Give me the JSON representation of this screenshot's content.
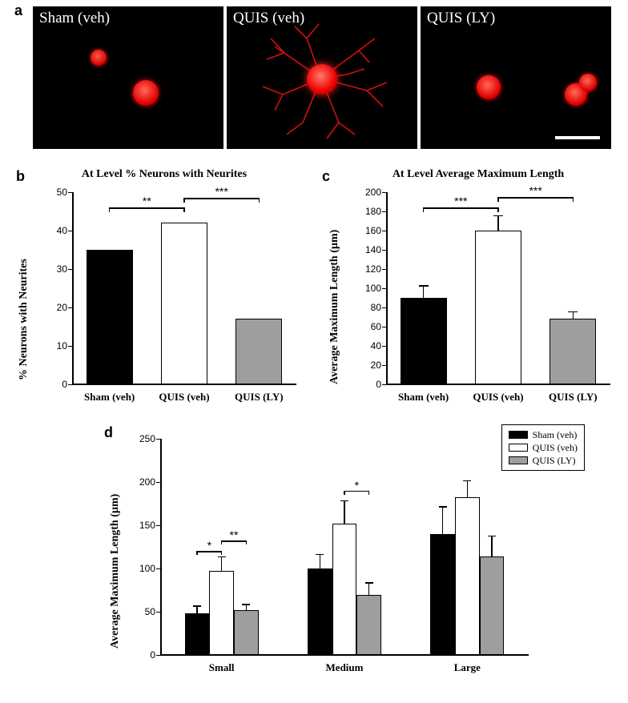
{
  "panel_labels": {
    "a": "a",
    "b": "b",
    "c": "c",
    "d": "d"
  },
  "panel_a": {
    "images": [
      {
        "caption": "Sham (veh)"
      },
      {
        "caption": "QUIS (veh)"
      },
      {
        "caption": "QUIS (LY)"
      }
    ],
    "background_color": "#000000",
    "cell_color": "#ff1a1a"
  },
  "chart_b": {
    "type": "bar",
    "title": "At Level % Neurons with Neurites",
    "ylabel": "% Neurons with Neurites",
    "ylim": [
      0,
      50
    ],
    "ytick_step": 10,
    "categories": [
      "Sham (veh)",
      "QUIS (veh)",
      "QUIS (LY)"
    ],
    "values": [
      35,
      42,
      17
    ],
    "errors": [
      0,
      0,
      0
    ],
    "bar_colors": [
      "#000000",
      "#ffffff",
      "#9e9e9e"
    ],
    "sig": [
      {
        "from": 0,
        "to": 1,
        "label": "**",
        "y": 46
      },
      {
        "from": 1,
        "to": 2,
        "label": "***",
        "y": 48.5
      }
    ],
    "title_fontsize": 14,
    "label_fontsize": 13
  },
  "chart_c": {
    "type": "bar",
    "title": "At Level Average Maximum Length",
    "ylabel": "Average Maximum Length (µm)",
    "ylim": [
      0,
      200
    ],
    "ytick_step": 20,
    "categories": [
      "Sham (veh)",
      "QUIS (veh)",
      "QUIS (LY)"
    ],
    "values": [
      90,
      160,
      68
    ],
    "errors": [
      13,
      16,
      8
    ],
    "bar_colors": [
      "#000000",
      "#ffffff",
      "#9e9e9e"
    ],
    "sig": [
      {
        "from": 0,
        "to": 1,
        "label": "***",
        "y": 184
      },
      {
        "from": 1,
        "to": 2,
        "label": "***",
        "y": 195
      }
    ]
  },
  "chart_d": {
    "type": "grouped-bar",
    "ylabel": "Average Maximum Length (µm)",
    "ylim": [
      0,
      250
    ],
    "ytick_step": 50,
    "groups": [
      "Small",
      "Medium",
      "Large"
    ],
    "series": [
      {
        "name": "Sham (veh)",
        "color": "#000000",
        "values": [
          48,
          100,
          140
        ],
        "errors": [
          9,
          17,
          32
        ]
      },
      {
        "name": "QUIS (veh)",
        "color": "#ffffff",
        "values": [
          97,
          152,
          182
        ],
        "errors": [
          17,
          27,
          20
        ]
      },
      {
        "name": "QUIS (LY)",
        "color": "#9e9e9e",
        "values": [
          52,
          69,
          114
        ],
        "errors": [
          7,
          15,
          24
        ]
      }
    ],
    "sig": [
      {
        "group": 0,
        "from": 0,
        "to": 1,
        "label": "*",
        "y": 120
      },
      {
        "group": 0,
        "from": 1,
        "to": 2,
        "label": "**",
        "y": 132
      },
      {
        "group": 1,
        "from": 1,
        "to": 2,
        "label": "*",
        "y": 190
      }
    ]
  },
  "colors": {
    "axis": "#000000",
    "background": "#ffffff"
  }
}
